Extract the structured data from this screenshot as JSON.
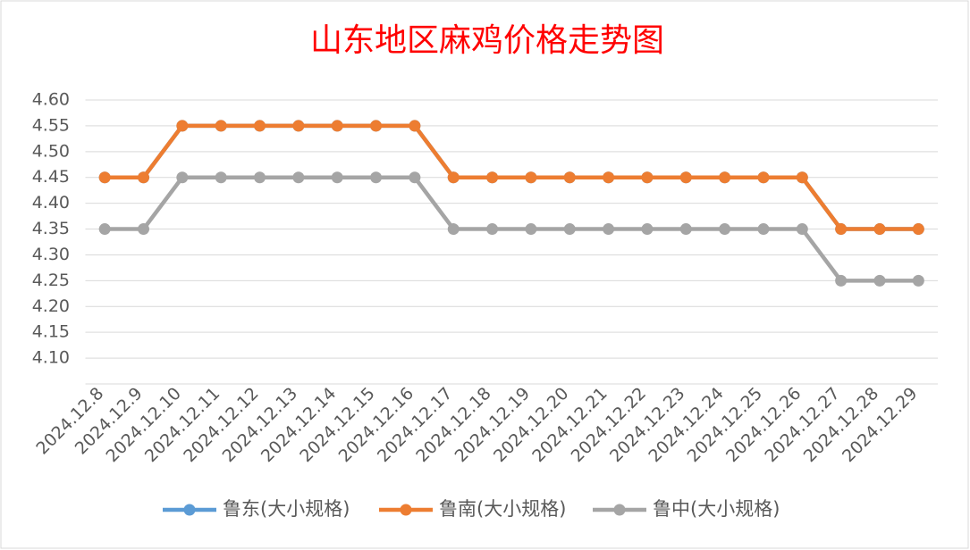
{
  "chart_data": {
    "type": "line",
    "title": "山东地区麻鸡价格走势图",
    "categories": [
      "2024.12.8",
      "2024.12.9",
      "2024.12.10",
      "2024.12.11",
      "2024.12.12",
      "2024.12.13",
      "2024.12.14",
      "2024.12.15",
      "2024.12.16",
      "2024.12.17",
      "2024.12.18",
      "2024.12.19",
      "2024.12.20",
      "2024.12.21",
      "2024.12.22",
      "2024.12.23",
      "2024.12.24",
      "2024.12.25",
      "2024.12.26",
      "2024.12.27",
      "2024.12.28",
      "2024.12.29"
    ],
    "series": [
      {
        "name": "鲁东(大小规格)",
        "color": "#5b9bd5",
        "values": [
          4.45,
          4.45,
          4.55,
          4.55,
          4.55,
          4.55,
          4.55,
          4.55,
          4.55,
          4.45,
          4.45,
          4.45,
          4.45,
          4.45,
          4.45,
          4.45,
          4.45,
          4.45,
          4.45,
          4.35,
          4.35,
          4.35
        ]
      },
      {
        "name": "鲁南(大小规格)",
        "color": "#ed7d31",
        "values": [
          4.45,
          4.45,
          4.55,
          4.55,
          4.55,
          4.55,
          4.55,
          4.55,
          4.55,
          4.45,
          4.45,
          4.45,
          4.45,
          4.45,
          4.45,
          4.45,
          4.45,
          4.45,
          4.45,
          4.35,
          4.35,
          4.35
        ]
      },
      {
        "name": "鲁中(大小规格)",
        "color": "#a5a5a5",
        "values": [
          4.35,
          4.35,
          4.45,
          4.45,
          4.45,
          4.45,
          4.45,
          4.45,
          4.45,
          4.35,
          4.35,
          4.35,
          4.35,
          4.35,
          4.35,
          4.35,
          4.35,
          4.35,
          4.35,
          4.25,
          4.25,
          4.25
        ]
      }
    ],
    "ylim": [
      4.05,
      4.6
    ],
    "yticks": [
      {
        "value": 4.1,
        "label": "4.10"
      },
      4.15,
      {
        "value": 4.2,
        "label": "4.20"
      },
      4.25,
      {
        "value": 4.3,
        "label": "4.30"
      },
      4.35,
      {
        "value": 4.4,
        "label": "4.40"
      },
      4.45,
      {
        "value": 4.5,
        "label": "4.50"
      },
      4.55,
      {
        "value": 4.6,
        "label": "4.60"
      }
    ],
    "grid": true,
    "legend": "bottom"
  }
}
